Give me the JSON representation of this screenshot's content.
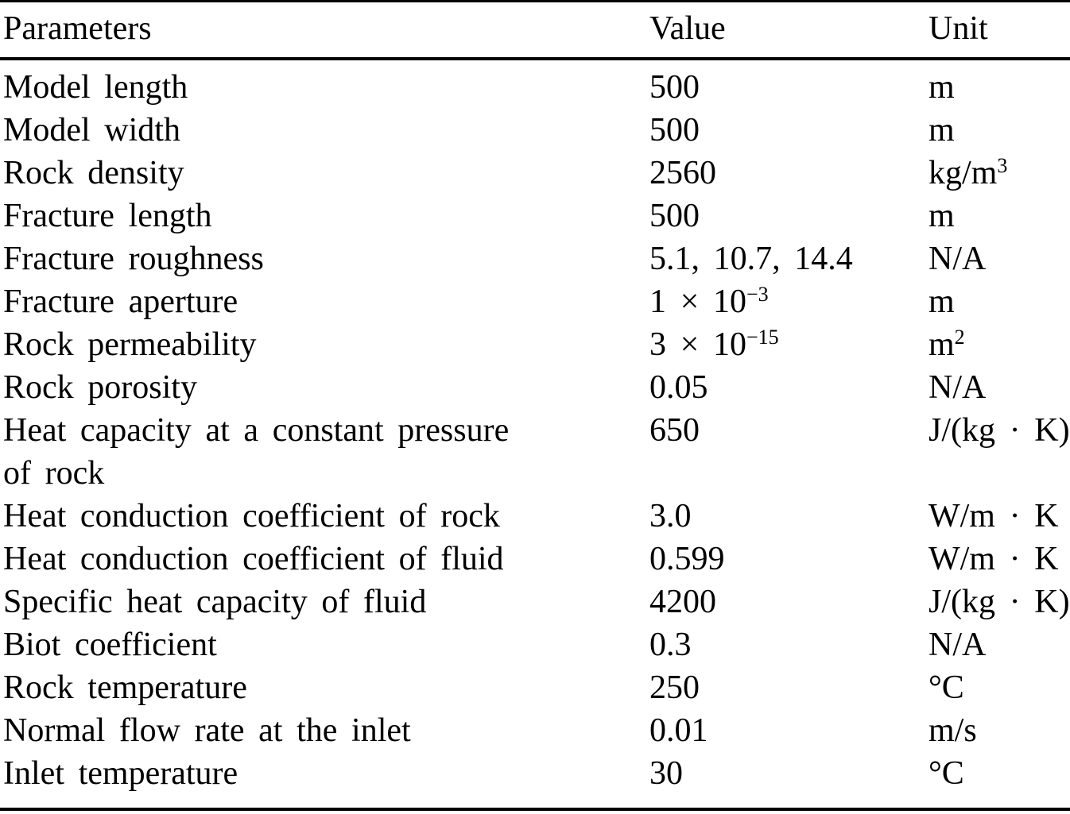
{
  "table": {
    "columns": [
      {
        "key": "param",
        "label": "Parameters"
      },
      {
        "key": "value",
        "label": "Value"
      },
      {
        "key": "unit",
        "label": "Unit"
      }
    ],
    "rows": [
      {
        "param": "Model length",
        "value": "500",
        "unit": "m"
      },
      {
        "param": "Model width",
        "value": "500",
        "unit": "m"
      },
      {
        "param": "Rock density",
        "value": "2560",
        "unit": "kg/m^{3}"
      },
      {
        "param": "Fracture length",
        "value": "500",
        "unit": "m"
      },
      {
        "param": "Fracture roughness",
        "value": "5.1, 10.7, 14.4",
        "unit": "N/A"
      },
      {
        "param": "Fracture aperture",
        "value": "1 × 10^{−3}",
        "unit": "m"
      },
      {
        "param": "Rock permeability",
        "value": "3 × 10^{−15}",
        "unit": "m^{2}"
      },
      {
        "param": "Rock porosity",
        "value": "0.05",
        "unit": "N/A"
      },
      {
        "param": "Heat capacity at a constant pressure\nof rock",
        "value": "650",
        "unit": "J/(kg · K)"
      },
      {
        "param": "Heat conduction coefficient of rock",
        "value": "3.0",
        "unit": "W/m · K"
      },
      {
        "param": "Heat conduction coefficient of fluid",
        "value": "0.599",
        "unit": "W/m · K"
      },
      {
        "param": "Specific heat capacity of fluid",
        "value": "4200",
        "unit": "J/(kg · K)"
      },
      {
        "param": "Biot coefficient",
        "value": "0.3",
        "unit": "N/A"
      },
      {
        "param": "Rock temperature",
        "value": "250",
        "unit": "°C"
      },
      {
        "param": "Normal flow rate at the inlet",
        "value": "0.01",
        "unit": "m/s"
      },
      {
        "param": "Inlet temperature",
        "value": "30",
        "unit": "°C"
      }
    ],
    "colors": {
      "text": "#000000",
      "background": "#ffffff",
      "rule": "#000000"
    }
  }
}
